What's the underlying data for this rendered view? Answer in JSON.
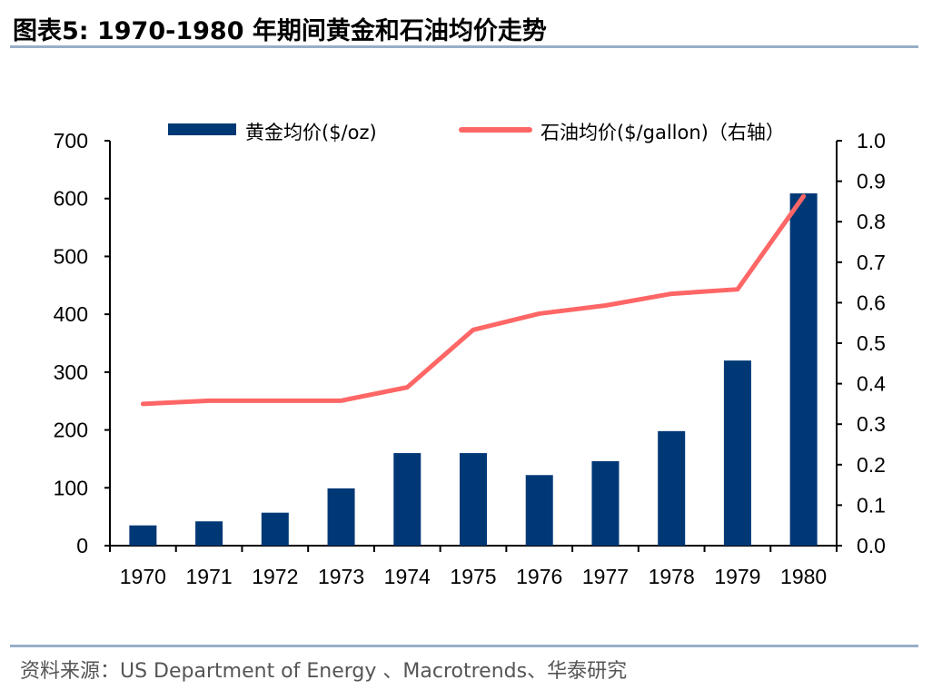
{
  "title": "图表5:   1970-1980 年期间黄金和石油均价走势",
  "source": "资料来源：US Department of Energy 、Macrotrends、华泰研究",
  "chart_data": {
    "type": "bar+line",
    "categories": [
      "1970",
      "1971",
      "1972",
      "1973",
      "1974",
      "1975",
      "1976",
      "1977",
      "1978",
      "1979",
      "1980"
    ],
    "series": [
      {
        "name": "黄金均价($/oz)",
        "type": "bar",
        "axis": "left",
        "color": "#003876",
        "values": [
          35,
          42,
          57,
          99,
          160,
          160,
          122,
          146,
          198,
          320,
          609
        ]
      },
      {
        "name": "石油均价($/gallon)（右轴）",
        "type": "line",
        "axis": "right",
        "color": "#ff6666",
        "values": [
          0.35,
          0.358,
          0.358,
          0.358,
          0.391,
          0.533,
          0.573,
          0.593,
          0.622,
          0.633,
          0.863
        ]
      }
    ],
    "y_left": {
      "range": [
        0,
        700
      ],
      "ticks": [
        "0",
        "100",
        "200",
        "300",
        "400",
        "500",
        "600",
        "700"
      ]
    },
    "y_right": {
      "range": [
        0,
        1.0
      ],
      "ticks": [
        "0.0",
        "0.1",
        "0.2",
        "0.3",
        "0.4",
        "0.5",
        "0.6",
        "0.7",
        "0.8",
        "0.9",
        "1.0"
      ]
    },
    "legend_position": "top",
    "grid": false
  }
}
